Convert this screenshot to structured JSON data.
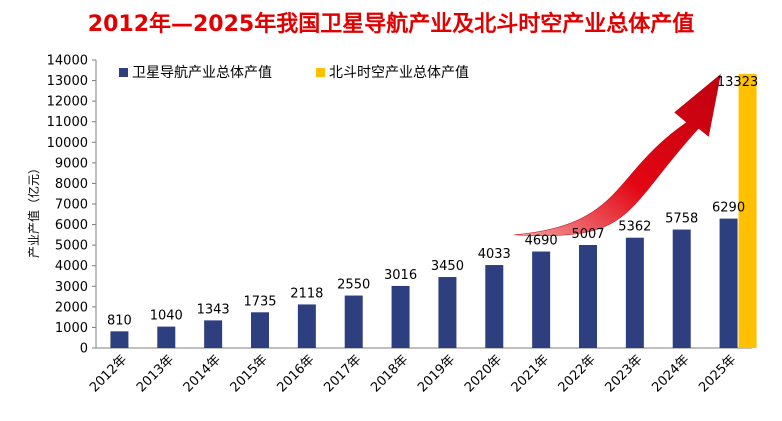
{
  "chart_data": {
    "type": "bar",
    "title": "2012年—2025年我国卫星导航产业及北斗时空产业总体产值",
    "ylabel": "产业产值（亿元）",
    "xlabel": "",
    "ylim": [
      0,
      14000
    ],
    "yticks": [
      0,
      1000,
      2000,
      3000,
      4000,
      5000,
      6000,
      7000,
      8000,
      9000,
      10000,
      11000,
      12000,
      13000,
      14000
    ],
    "grid": false,
    "legend_position": "top-left",
    "categories": [
      "2012年",
      "2013年",
      "2014年",
      "2015年",
      "2016年",
      "2017年",
      "2018年",
      "2019年",
      "2020年",
      "2021年",
      "2022年",
      "2023年",
      "2024年",
      "2025年"
    ],
    "series": [
      {
        "name": "卫星导航产业总体产值",
        "color": "#2e3f7f",
        "values": [
          810,
          1040,
          1343,
          1735,
          2118,
          2550,
          3016,
          3450,
          4033,
          4690,
          5007,
          5362,
          5758,
          6290
        ]
      },
      {
        "name": "北斗时空产业总体产值",
        "color": "#ffc000",
        "values": [
          null,
          null,
          null,
          null,
          null,
          null,
          null,
          null,
          null,
          null,
          null,
          null,
          null,
          13323
        ]
      }
    ],
    "data_labels": [
      "810",
      "1040",
      "1343",
      "1735",
      "2118",
      "2550",
      "3016",
      "3450",
      "4033",
      "4690",
      "5007",
      "5362",
      "5758",
      "6290"
    ],
    "extra_label": "13323",
    "arrow": {
      "color": "#e30613",
      "from_category": "2020年",
      "to_category": "2025年"
    }
  }
}
